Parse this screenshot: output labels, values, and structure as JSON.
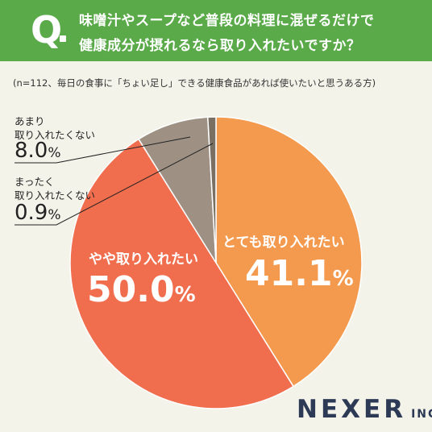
{
  "question": {
    "mark": "Q",
    "line1": "味噌汁やスープなど普段の料理に混ぜるだけで",
    "line2": "健康成分が摂れるなら取り入れたいですか？"
  },
  "note": "(n=112、毎日の食事に「ちょい足し」できる健康食品があれば使いたいと思うある方)",
  "logo": {
    "name": "NEXER",
    "suffix": "INC."
  },
  "chart_data": {
    "type": "pie",
    "start": "12 o'clock",
    "direction": "clockwise",
    "unit": "%",
    "slices": [
      {
        "label": "とても取り入れたい",
        "value": 41.1,
        "value_text": "41.1",
        "color": "#f49a4f"
      },
      {
        "label": "やや取り入れたい",
        "value": 50.0,
        "value_text": "50.0",
        "color": "#f06e4e"
      },
      {
        "label_lines": [
          "あまり",
          "取り入れたくない"
        ],
        "value": 8.0,
        "value_text": "8.0",
        "color": "#9e9184"
      },
      {
        "label_lines": [
          "まったく",
          "取り入れたくない"
        ],
        "value": 0.9,
        "value_text": "0.9",
        "color": "#7a6f63"
      }
    ]
  }
}
